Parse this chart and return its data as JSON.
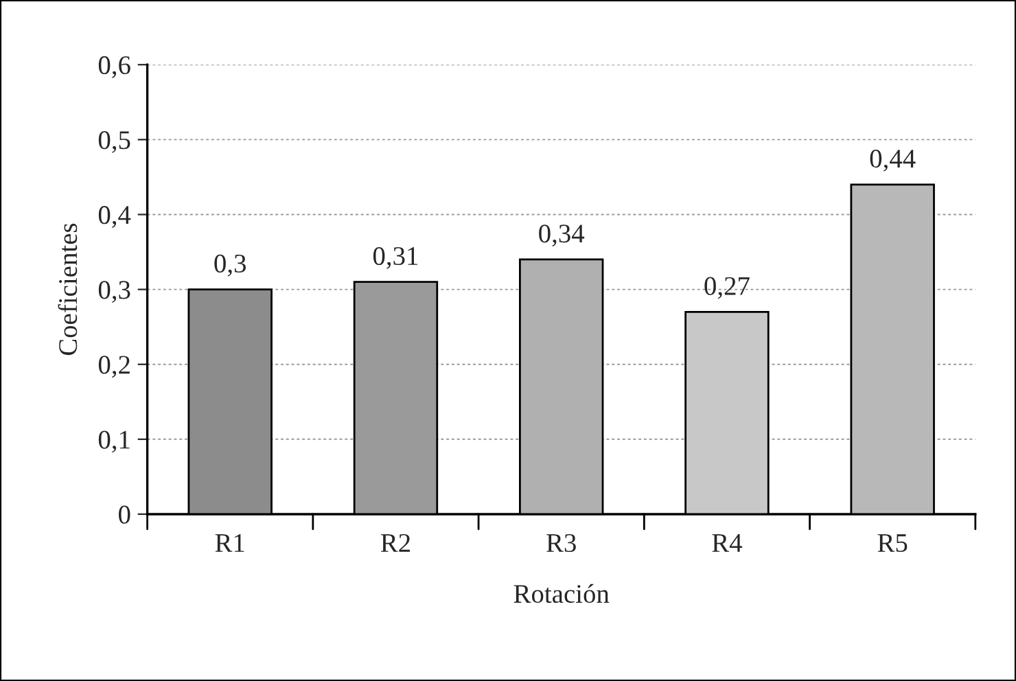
{
  "chart_data": {
    "type": "bar",
    "xlabel": "Rotación",
    "ylabel": "Coeficientes",
    "categories": [
      "R1",
      "R2",
      "R3",
      "R4",
      "R5"
    ],
    "values": [
      0.3,
      0.31,
      0.34,
      0.27,
      0.44
    ],
    "value_labels": [
      "0,3",
      "0,31",
      "0,34",
      "0,27",
      "0,44"
    ],
    "colors": [
      "#8c8c8c",
      "#9a9a9a",
      "#b0b0b0",
      "#c8c8c8",
      "#b8b8b8"
    ],
    "ylim": [
      0,
      0.6
    ],
    "yticks": [
      {
        "value": 0,
        "label": "0"
      },
      {
        "value": 0.1,
        "label": "0,1"
      },
      {
        "value": 0.2,
        "label": "0,2"
      },
      {
        "value": 0.3,
        "label": "0,3"
      },
      {
        "value": 0.4,
        "label": "0,4"
      },
      {
        "value": 0.5,
        "label": "0,5"
      },
      {
        "value": 0.6,
        "label": "0,6"
      }
    ],
    "grid": "y",
    "legend": false
  }
}
